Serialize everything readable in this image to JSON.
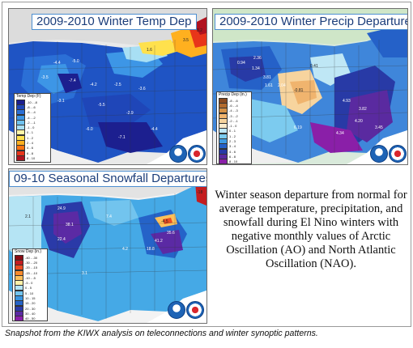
{
  "panels": {
    "temp": {
      "title": "2009-2010 Winter Temp Dep"
    },
    "precip": {
      "title": "2009-2010 Winter Precip Departure"
    },
    "snow": {
      "title": "09-10 Seasonal Snowfall Departures"
    }
  },
  "caption": "Winter season departure from normal for average temperature, precipitation, and snowfall during El Nino winters with negative monthly values of Arctic Oscillation (AO) and North Atlantic Oscillation (NAO).",
  "footer": "Snapshot from the KIWX analysis on teleconnections and winter synoptic patterns.",
  "legends": {
    "temp": {
      "title": "Temp Dep (F)",
      "items": [
        {
          "label": "-10 - -8",
          "color": "#1c1f8f"
        },
        {
          "label": "-8 - -6",
          "color": "#1f46b8"
        },
        {
          "label": "-6 - -4",
          "color": "#2b6fd6"
        },
        {
          "label": "-4 - -2",
          "color": "#3d96e6"
        },
        {
          "label": "-2 - -1",
          "color": "#6fc2ef"
        },
        {
          "label": "-1 - 0",
          "color": "#a8dff4"
        },
        {
          "label": "0 - 1",
          "color": "#fff6a8"
        },
        {
          "label": "1 - 2",
          "color": "#ffe14d"
        },
        {
          "label": "2 - 4",
          "color": "#ffb01f"
        },
        {
          "label": "4 - 6",
          "color": "#ff7410"
        },
        {
          "label": "6 - 8",
          "color": "#e8351a"
        },
        {
          "label": "8 - 10",
          "color": "#b0121e"
        }
      ]
    },
    "precip": {
      "title": "Precip Dep (in.)",
      "items": [
        {
          "label": "-8 - -6",
          "color": "#8b4a20"
        },
        {
          "label": "-6 - -4",
          "color": "#b36b2d"
        },
        {
          "label": "-4 - -3",
          "color": "#d69247"
        },
        {
          "label": "-3 - -2",
          "color": "#f0b46e"
        },
        {
          "label": "-2 - -1",
          "color": "#f7d49e"
        },
        {
          "label": "-1 - 0",
          "color": "#fbebcc"
        },
        {
          "label": "0 - 1",
          "color": "#bfe7f5"
        },
        {
          "label": "1 - 2",
          "color": "#7ccbef"
        },
        {
          "label": "2 - 3",
          "color": "#3f9be3"
        },
        {
          "label": "3 - 4",
          "color": "#2561c8"
        },
        {
          "label": "4 - 6",
          "color": "#283aa6"
        },
        {
          "label": "6 - 8",
          "color": "#5a2aa0"
        },
        {
          "label": "8 - 10",
          "color": "#8a1fa8"
        }
      ]
    },
    "snow": {
      "title": "Snow Dep (in.)",
      "items": [
        {
          "label": "-40 - -30",
          "color": "#8b0b14"
        },
        {
          "label": "-30 - -20",
          "color": "#c41d20"
        },
        {
          "label": "-20 - -15",
          "color": "#ed4d22"
        },
        {
          "label": "-15 - -10",
          "color": "#f98a2c"
        },
        {
          "label": "-10 - -5",
          "color": "#fdc05a"
        },
        {
          "label": "-5 - 0",
          "color": "#fff1a8"
        },
        {
          "label": "0 - 5",
          "color": "#b5e4f4"
        },
        {
          "label": "5 - 10",
          "color": "#72c4ee"
        },
        {
          "label": "10 - 15",
          "color": "#3a95e0"
        },
        {
          "label": "15 - 20",
          "color": "#2563c8"
        },
        {
          "label": "20 - 30",
          "color": "#2a3aa8"
        },
        {
          "label": "30 - 40",
          "color": "#5b2aa4"
        },
        {
          "label": "40 - 50",
          "color": "#8a20aa"
        }
      ]
    }
  },
  "colors": {
    "ocean": "#ffffff",
    "title_text": "#1b3d7a",
    "title_border": "#4d8fd1",
    "temp_base": "#1f54c4",
    "precip_base": "#3f86da",
    "snow_base": "#45a9e6",
    "canada": "#d9d9d9",
    "mexico": "#d9d9d9"
  },
  "icons": [
    "noaa-logo-icon",
    "nws-logo-icon"
  ]
}
